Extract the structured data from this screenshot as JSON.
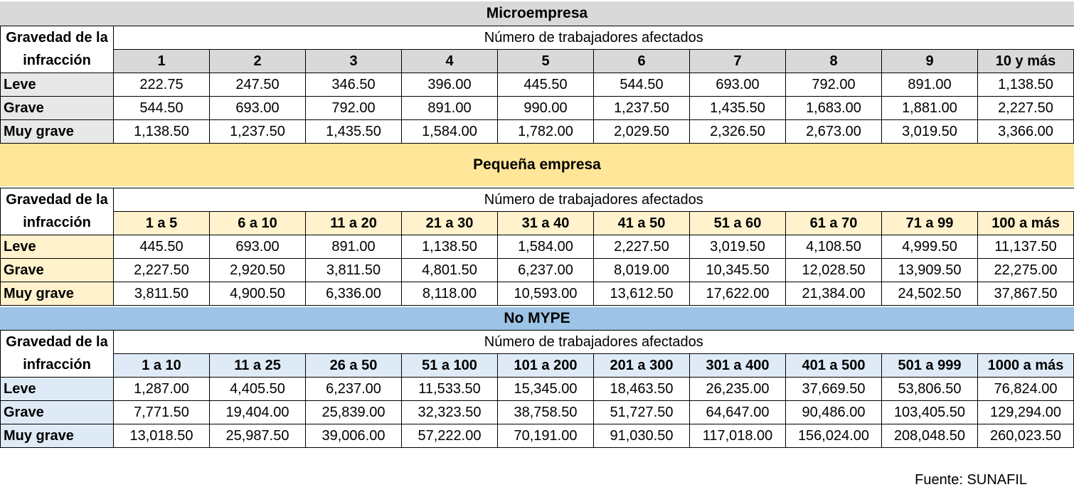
{
  "sections": [
    {
      "title": "Microempresa",
      "label_header": "Gravedad de la infracción",
      "subtitle": "Número de trabajadores afectados",
      "columns": [
        "1",
        "2",
        "3",
        "4",
        "5",
        "6",
        "7",
        "8",
        "9",
        "10 y más"
      ],
      "rows": [
        {
          "label": "Leve",
          "values": [
            "222.75",
            "247.50",
            "346.50",
            "396.00",
            "445.50",
            "544.50",
            "693.00",
            "792.00",
            "891.00",
            "1,138.50"
          ]
        },
        {
          "label": "Grave",
          "values": [
            "544.50",
            "693.00",
            "792.00",
            "891.00",
            "990.00",
            "1,237.50",
            "1,435.50",
            "1,683.00",
            "1,881.00",
            "2,227.50"
          ]
        },
        {
          "label": "Muy grave",
          "values": [
            "1,138.50",
            "1,237.50",
            "1,435.50",
            "1,584.00",
            "1,782.00",
            "2,029.50",
            "2,326.50",
            "2,673.00",
            "3,019.50",
            "3,366.00"
          ]
        }
      ]
    },
    {
      "title": "Pequeña empresa",
      "label_header": "Gravedad de la infracción",
      "subtitle": "Número de trabajadores afectados",
      "columns": [
        "1 a 5",
        "6 a 10",
        "11 a 20",
        "21 a 30",
        "31 a 40",
        "41 a 50",
        "51 a 60",
        "61 a 70",
        "71 a 99",
        "100 a más"
      ],
      "rows": [
        {
          "label": "Leve",
          "values": [
            "445.50",
            "693.00",
            "891.00",
            "1,138.50",
            "1,584.00",
            "2,227.50",
            "3,019.50",
            "4,108.50",
            "4,999.50",
            "11,137.50"
          ]
        },
        {
          "label": "Grave",
          "values": [
            "2,227.50",
            "2,920.50",
            "3,811.50",
            "4,801.50",
            "6,237.00",
            "8,019.00",
            "10,345.50",
            "12,028.50",
            "13,909.50",
            "22,275.00"
          ]
        },
        {
          "label": "Muy grave",
          "values": [
            "3,811.50",
            "4,900.50",
            "6,336.00",
            "8,118.00",
            "10,593.00",
            "13,612.50",
            "17,622.00",
            "21,384.00",
            "24,502.50",
            "37,867.50"
          ]
        }
      ]
    },
    {
      "title": "No MYPE",
      "label_header": "Gravedad de la infracción",
      "subtitle": "Número de trabajadores afectados",
      "columns": [
        "1 a 10",
        "11 a 25",
        "26 a 50",
        "51 a 100",
        "101 a 200",
        "201 a 300",
        "301 a 400",
        "401 a 500",
        "501 a 999",
        "1000 a más"
      ],
      "rows": [
        {
          "label": "Leve",
          "values": [
            "1,287.00",
            "4,405.50",
            "6,237.00",
            "11,533.50",
            "15,345.00",
            "18,463.50",
            "26,235.00",
            "37,669.50",
            "53,806.50",
            "76,824.00"
          ]
        },
        {
          "label": "Grave",
          "values": [
            "7,771.50",
            "19,404.00",
            "25,839.00",
            "32,323.50",
            "38,758.50",
            "51,727.50",
            "64,647.00",
            "90,486.00",
            "103,405.50",
            "129,294.00"
          ]
        },
        {
          "label": "Muy grave",
          "values": [
            "13,018.50",
            "25,987.50",
            "39,006.00",
            "57,222.00",
            "70,191.00",
            "91,030.50",
            "117,018.00",
            "156,024.00",
            "208,048.50",
            "260,023.50"
          ]
        }
      ]
    }
  ],
  "source": "Fuente: SUNAFIL"
}
